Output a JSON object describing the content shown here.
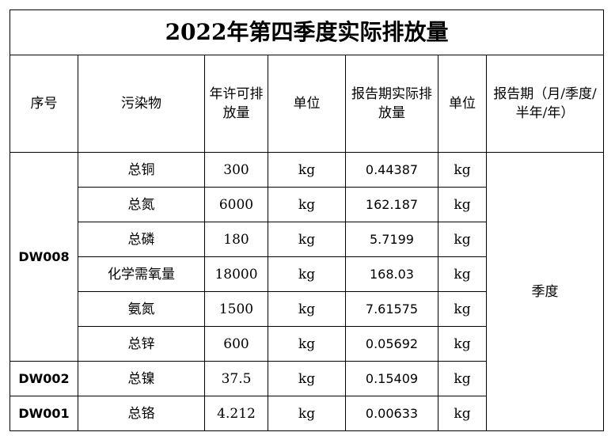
{
  "title": "2022年第四季度实际排放量",
  "headers": [
    "序号",
    "污染物",
    "年许可排放量",
    "单位",
    "报告期实际排放量",
    "单位",
    "报告期（月/季度/半年/年）"
  ],
  "groups": [
    {
      "id": "DW008",
      "rows": [
        [
          "总铜",
          "300",
          "kg",
          "0.44387",
          "kg"
        ],
        [
          "总氮",
          "6000",
          "kg",
          "162.187",
          "kg"
        ],
        [
          "总磷",
          "180",
          "kg",
          "5.7199",
          "kg"
        ],
        [
          "化学需氧量",
          "18000",
          "kg",
          "168.03",
          "kg"
        ],
        [
          "氨氮",
          "1500",
          "kg",
          "7.61575",
          "kg"
        ],
        [
          "总锌",
          "600",
          "kg",
          "0.05692",
          "kg"
        ]
      ]
    },
    {
      "id": "DW002",
      "rows": [
        [
          "总镍",
          "37.5",
          "kg",
          "0.15409",
          "kg"
        ]
      ]
    },
    {
      "id": "DW001",
      "rows": [
        [
          "总铬",
          "4.212",
          "kg",
          "0.00633",
          "kg"
        ]
      ]
    }
  ],
  "period": "季度"
}
